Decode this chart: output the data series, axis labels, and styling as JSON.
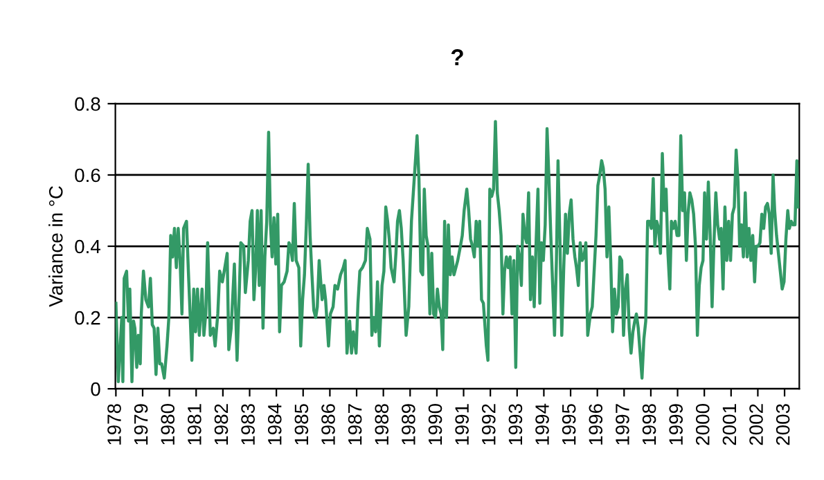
{
  "chart_data": {
    "type": "line",
    "title": "?",
    "ylabel": "Variance in °C",
    "xlim": [
      1977.98,
      2003.55
    ],
    "xticks": [
      1978,
      1979,
      1980,
      1981,
      1982,
      1983,
      1984,
      1985,
      1986,
      1987,
      1988,
      1989,
      1990,
      1991,
      1992,
      1993,
      1994,
      1995,
      1996,
      1997,
      1998,
      1999,
      2000,
      2001,
      2002,
      2003
    ],
    "ylim": [
      0,
      0.8
    ],
    "yticks": [
      0,
      0.2,
      0.4,
      0.6,
      0.8
    ],
    "grid": "y",
    "marker": "none",
    "line_style": "solid",
    "series": [
      {
        "color": "#339966",
        "x": [
          1978.0,
          1978.09,
          1978.22,
          1978.26,
          1978.31,
          1978.4,
          1978.47,
          1978.52,
          1978.6,
          1978.66,
          1978.71,
          1978.78,
          1978.84,
          1978.91,
          1978.95,
          1979.03,
          1979.12,
          1979.22,
          1979.29,
          1979.36,
          1979.43,
          1979.5,
          1979.57,
          1979.64,
          1979.71,
          1979.81,
          1979.91,
          1979.98,
          1980.05,
          1980.12,
          1980.19,
          1980.26,
          1980.33,
          1980.4,
          1980.47,
          1980.53,
          1980.64,
          1980.71,
          1980.78,
          1980.84,
          1980.91,
          1980.98,
          1981.05,
          1981.12,
          1981.22,
          1981.29,
          1981.36,
          1981.43,
          1981.53,
          1981.64,
          1981.71,
          1981.81,
          1981.88,
          1981.98,
          1982.05,
          1982.16,
          1982.22,
          1982.31,
          1982.43,
          1982.53,
          1982.6,
          1982.67,
          1982.78,
          1982.84,
          1982.95,
          1983.02,
          1983.09,
          1983.16,
          1983.22,
          1983.29,
          1983.36,
          1983.43,
          1983.5,
          1983.57,
          1983.64,
          1983.71,
          1983.78,
          1983.84,
          1983.91,
          1983.98,
          1984.05,
          1984.12,
          1984.19,
          1984.29,
          1984.4,
          1984.47,
          1984.53,
          1984.6,
          1984.67,
          1984.74,
          1984.84,
          1984.91,
          1984.98,
          1985.05,
          1985.12,
          1985.19,
          1985.26,
          1985.33,
          1985.4,
          1985.47,
          1985.53,
          1985.6,
          1985.71,
          1985.78,
          1985.84,
          1985.95,
          1986.02,
          1986.12,
          1986.19,
          1986.29,
          1986.4,
          1986.5,
          1986.57,
          1986.64,
          1986.74,
          1986.81,
          1986.88,
          1986.98,
          1987.05,
          1987.12,
          1987.22,
          1987.33,
          1987.4,
          1987.5,
          1987.57,
          1987.64,
          1987.71,
          1987.78,
          1987.85,
          1987.95,
          1988.02,
          1988.09,
          1988.16,
          1988.22,
          1988.29,
          1988.4,
          1988.47,
          1988.53,
          1988.6,
          1988.67,
          1988.74,
          1988.85,
          1988.95,
          1989.05,
          1989.12,
          1989.19,
          1989.26,
          1989.33,
          1989.4,
          1989.47,
          1989.53,
          1989.6,
          1989.67,
          1989.74,
          1989.81,
          1989.88,
          1989.95,
          1990.02,
          1990.09,
          1990.16,
          1990.22,
          1990.29,
          1990.36,
          1990.43,
          1990.5,
          1990.57,
          1990.64,
          1990.71,
          1990.78,
          1990.88,
          1990.95,
          1991.02,
          1991.12,
          1991.19,
          1991.26,
          1991.33,
          1991.4,
          1991.47,
          1991.53,
          1991.6,
          1991.67,
          1991.74,
          1991.85,
          1991.91,
          1991.98,
          1992.05,
          1992.12,
          1992.19,
          1992.26,
          1992.33,
          1992.4,
          1992.47,
          1992.53,
          1992.6,
          1992.67,
          1992.74,
          1992.81,
          1992.88,
          1992.95,
          1993.02,
          1993.09,
          1993.16,
          1993.22,
          1993.29,
          1993.36,
          1993.43,
          1993.5,
          1993.57,
          1993.64,
          1993.71,
          1993.78,
          1993.85,
          1993.91,
          1993.98,
          1994.05,
          1994.12,
          1994.19,
          1994.26,
          1994.33,
          1994.4,
          1994.47,
          1994.53,
          1994.6,
          1994.67,
          1994.74,
          1994.81,
          1994.88,
          1994.95,
          1995.02,
          1995.09,
          1995.16,
          1995.22,
          1995.29,
          1995.36,
          1995.43,
          1995.5,
          1995.57,
          1995.64,
          1995.74,
          1995.81,
          1995.88,
          1995.95,
          1996.02,
          1996.09,
          1996.16,
          1996.22,
          1996.29,
          1996.36,
          1996.43,
          1996.5,
          1996.57,
          1996.64,
          1996.71,
          1996.78,
          1996.84,
          1996.91,
          1996.98,
          1997.05,
          1997.12,
          1997.19,
          1997.26,
          1997.33,
          1997.4,
          1997.46,
          1997.53,
          1997.6,
          1997.67,
          1997.74,
          1997.81,
          1997.88,
          1997.95,
          1998.02,
          1998.09,
          1998.15,
          1998.22,
          1998.29,
          1998.36,
          1998.43,
          1998.5,
          1998.57,
          1998.64,
          1998.71,
          1998.77,
          1998.84,
          1998.91,
          1998.98,
          1999.05,
          1999.12,
          1999.19,
          1999.26,
          1999.33,
          1999.39,
          1999.46,
          1999.53,
          1999.6,
          1999.67,
          1999.74,
          1999.81,
          1999.88,
          1999.95,
          2000.01,
          2000.08,
          2000.15,
          2000.22,
          2000.29,
          2000.36,
          2000.43,
          2000.5,
          2000.57,
          2000.63,
          2000.7,
          2000.77,
          2000.84,
          2000.91,
          2000.98,
          2001.05,
          2001.12,
          2001.19,
          2001.26,
          2001.32,
          2001.39,
          2001.46,
          2001.53,
          2001.6,
          2001.67,
          2001.74,
          2001.81,
          2001.88,
          2001.94,
          2002.01,
          2002.08,
          2002.15,
          2002.22,
          2002.29,
          2002.36,
          2002.43,
          2002.5,
          2002.57,
          2002.63,
          2002.7,
          2002.77,
          2002.84,
          2002.91,
          2002.98,
          2003.05,
          2003.12,
          2003.18,
          2003.25,
          2003.32,
          2003.39,
          2003.46,
          2003.51
        ],
        "values": [
          0.24,
          0.02,
          0.2,
          0.02,
          0.31,
          0.33,
          0.19,
          0.28,
          0.02,
          0.19,
          0.17,
          0.06,
          0.15,
          0.07,
          0.21,
          0.33,
          0.25,
          0.23,
          0.31,
          0.18,
          0.17,
          0.04,
          0.17,
          0.07,
          0.07,
          0.03,
          0.12,
          0.2,
          0.43,
          0.37,
          0.45,
          0.34,
          0.45,
          0.36,
          0.21,
          0.45,
          0.47,
          0.33,
          0.2,
          0.08,
          0.28,
          0.16,
          0.28,
          0.15,
          0.28,
          0.15,
          0.21,
          0.41,
          0.15,
          0.17,
          0.12,
          0.21,
          0.33,
          0.3,
          0.33,
          0.38,
          0.11,
          0.17,
          0.35,
          0.08,
          0.24,
          0.41,
          0.4,
          0.27,
          0.36,
          0.47,
          0.5,
          0.25,
          0.33,
          0.5,
          0.29,
          0.5,
          0.17,
          0.37,
          0.47,
          0.72,
          0.46,
          0.37,
          0.48,
          0.35,
          0.49,
          0.16,
          0.29,
          0.3,
          0.33,
          0.41,
          0.4,
          0.36,
          0.52,
          0.36,
          0.34,
          0.12,
          0.25,
          0.32,
          0.46,
          0.63,
          0.43,
          0.32,
          0.22,
          0.2,
          0.23,
          0.36,
          0.25,
          0.29,
          0.25,
          0.12,
          0.21,
          0.23,
          0.29,
          0.28,
          0.32,
          0.34,
          0.36,
          0.1,
          0.19,
          0.1,
          0.16,
          0.1,
          0.24,
          0.33,
          0.34,
          0.36,
          0.45,
          0.42,
          0.15,
          0.2,
          0.16,
          0.3,
          0.12,
          0.29,
          0.33,
          0.51,
          0.47,
          0.42,
          0.34,
          0.3,
          0.38,
          0.47,
          0.5,
          0.45,
          0.36,
          0.15,
          0.23,
          0.47,
          0.55,
          0.63,
          0.71,
          0.59,
          0.33,
          0.32,
          0.56,
          0.43,
          0.4,
          0.21,
          0.38,
          0.21,
          0.2,
          0.28,
          0.23,
          0.21,
          0.11,
          0.47,
          0.2,
          0.46,
          0.32,
          0.37,
          0.32,
          0.34,
          0.36,
          0.4,
          0.43,
          0.5,
          0.56,
          0.5,
          0.42,
          0.4,
          0.37,
          0.47,
          0.4,
          0.47,
          0.25,
          0.24,
          0.12,
          0.08,
          0.56,
          0.54,
          0.56,
          0.75,
          0.55,
          0.5,
          0.43,
          0.21,
          0.33,
          0.37,
          0.34,
          0.37,
          0.21,
          0.36,
          0.06,
          0.4,
          0.37,
          0.29,
          0.49,
          0.43,
          0.41,
          0.55,
          0.25,
          0.37,
          0.23,
          0.41,
          0.56,
          0.24,
          0.41,
          0.36,
          0.46,
          0.73,
          0.59,
          0.43,
          0.29,
          0.15,
          0.36,
          0.64,
          0.42,
          0.15,
          0.33,
          0.49,
          0.38,
          0.49,
          0.53,
          0.42,
          0.37,
          0.34,
          0.29,
          0.41,
          0.36,
          0.37,
          0.41,
          0.15,
          0.21,
          0.23,
          0.33,
          0.43,
          0.57,
          0.6,
          0.64,
          0.62,
          0.56,
          0.37,
          0.51,
          0.36,
          0.16,
          0.28,
          0.21,
          0.23,
          0.37,
          0.36,
          0.15,
          0.28,
          0.32,
          0.17,
          0.1,
          0.16,
          0.19,
          0.21,
          0.17,
          0.1,
          0.03,
          0.14,
          0.19,
          0.47,
          0.47,
          0.45,
          0.59,
          0.4,
          0.47,
          0.45,
          0.38,
          0.66,
          0.5,
          0.56,
          0.38,
          0.28,
          0.47,
          0.45,
          0.47,
          0.43,
          0.43,
          0.71,
          0.5,
          0.55,
          0.36,
          0.49,
          0.55,
          0.53,
          0.49,
          0.4,
          0.15,
          0.29,
          0.34,
          0.36,
          0.55,
          0.42,
          0.58,
          0.43,
          0.23,
          0.41,
          0.55,
          0.46,
          0.42,
          0.45,
          0.28,
          0.51,
          0.36,
          0.47,
          0.36,
          0.49,
          0.51,
          0.67,
          0.58,
          0.4,
          0.46,
          0.37,
          0.55,
          0.37,
          0.45,
          0.36,
          0.43,
          0.3,
          0.4,
          0.4,
          0.41,
          0.49,
          0.45,
          0.51,
          0.52,
          0.49,
          0.38,
          0.6,
          0.5,
          0.43,
          0.38,
          0.33,
          0.28,
          0.3,
          0.42,
          0.5,
          0.45,
          0.47,
          0.46,
          0.46,
          0.64,
          0.51
        ]
      }
    ]
  }
}
